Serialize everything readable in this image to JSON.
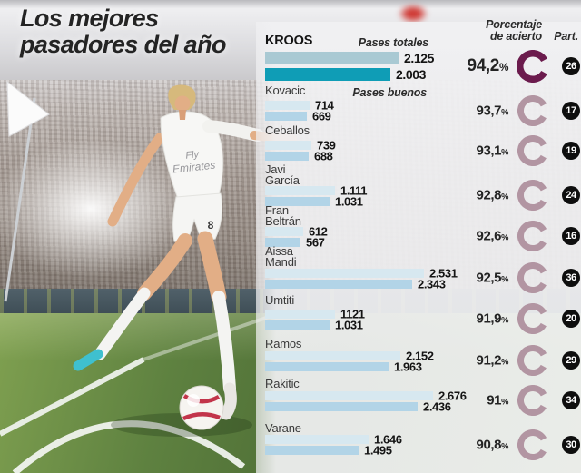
{
  "title": {
    "line1": "Los mejores",
    "line2": "pasadores del año"
  },
  "columns": {
    "total": "Pases totales",
    "good": "Pases buenos",
    "pct_line1": "Porcentaje",
    "pct_line2": "de acierto",
    "part": "Part."
  },
  "photo": {
    "shirt_line1": "Fly",
    "shirt_line2": "Emirates",
    "shorts_number": "8"
  },
  "colors": {
    "teal": "#0f9db6",
    "kroos_total": "#a9c9d3",
    "bar_total_light": "#d7e8f0",
    "bar_good_light": "#b2d4e7",
    "donut_dark": "#6b1b4d",
    "donut_light": "#b295a2",
    "badge_bg": "#0e0e0e"
  },
  "chart_data": {
    "type": "bar",
    "title": "Los mejores pasadores del año",
    "series": [
      {
        "name": "Pases totales"
      },
      {
        "name": "Pases buenos"
      }
    ],
    "pct_unit": "%",
    "x_max": 2676,
    "players": [
      {
        "name": "KROOS",
        "name_lines": [
          "KROOS"
        ],
        "total": 2125,
        "total_label": "2.125",
        "good": 2003,
        "good_label": "2.003",
        "pct": 94.2,
        "pct_label": "94,2",
        "part": "26",
        "highlight": true
      },
      {
        "name": "Kovacic",
        "name_lines": [
          "Kovacic"
        ],
        "total": 714,
        "total_label": "714",
        "good": 669,
        "good_label": "669",
        "pct": 93.7,
        "pct_label": "93,7",
        "part": "17",
        "highlight": false
      },
      {
        "name": "Ceballos",
        "name_lines": [
          "Ceballos"
        ],
        "total": 739,
        "total_label": "739",
        "good": 688,
        "good_label": "688",
        "pct": 93.1,
        "pct_label": "93,1",
        "part": "19",
        "highlight": false
      },
      {
        "name": "Javi García",
        "name_lines": [
          "Javi",
          "García"
        ],
        "total": 1111,
        "total_label": "1.111",
        "good": 1031,
        "good_label": "1.031",
        "pct": 92.8,
        "pct_label": "92,8",
        "part": "24",
        "highlight": false
      },
      {
        "name": "Fran Beltrán",
        "name_lines": [
          "Fran",
          "Beltrán"
        ],
        "total": 612,
        "total_label": "612",
        "good": 567,
        "good_label": "567",
        "pct": 92.6,
        "pct_label": "92,6",
        "part": "16",
        "highlight": false
      },
      {
        "name": "Aissa Mandi",
        "name_lines": [
          "Aissa",
          "Mandi"
        ],
        "total": 2531,
        "total_label": "2.531",
        "good": 2343,
        "good_label": "2.343",
        "pct": 92.5,
        "pct_label": "92,5",
        "part": "36",
        "highlight": false
      },
      {
        "name": "Umtiti",
        "name_lines": [
          "Umtiti"
        ],
        "total": 1121,
        "total_label": "1121",
        "good": 1031,
        "good_label": "1.031",
        "pct": 91.9,
        "pct_label": "91,9",
        "part": "20",
        "highlight": false
      },
      {
        "name": "Ramos",
        "name_lines": [
          "Ramos"
        ],
        "total": 2152,
        "total_label": "2.152",
        "good": 1963,
        "good_label": "1.963",
        "pct": 91.2,
        "pct_label": "91,2",
        "part": "29",
        "highlight": false
      },
      {
        "name": "Rakitic",
        "name_lines": [
          "Rakitic"
        ],
        "total": 2676,
        "total_label": "2.676",
        "good": 2436,
        "good_label": "2.436",
        "pct": 91.0,
        "pct_label": "91",
        "part": "34",
        "highlight": false
      },
      {
        "name": "Varane",
        "name_lines": [
          "Varane"
        ],
        "total": 1646,
        "total_label": "1.646",
        "good": 1495,
        "good_label": "1.495",
        "pct": 90.8,
        "pct_label": "90,8",
        "part": "30",
        "highlight": false
      }
    ]
  }
}
